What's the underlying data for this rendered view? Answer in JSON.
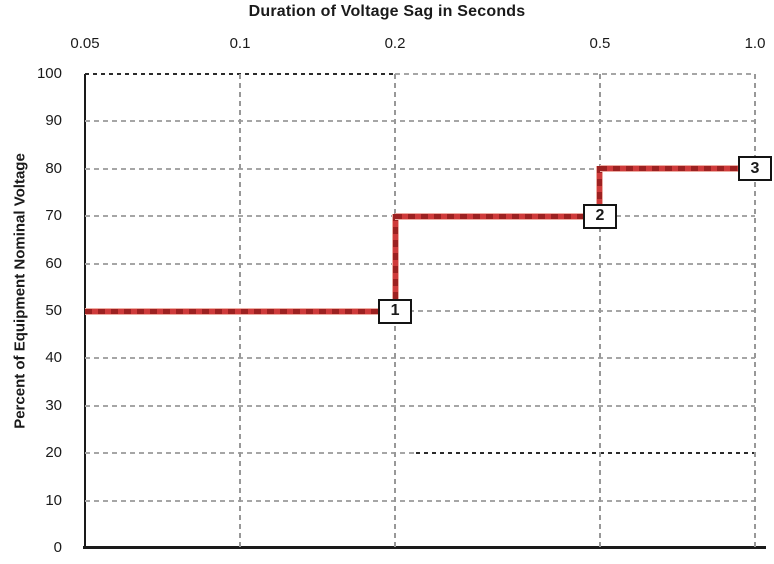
{
  "chart_data": {
    "type": "line",
    "line_shape": "step",
    "title": "Duration of Voltage Sag in Seconds",
    "ylabel": "Percent of Equipment Nominal Voltage",
    "x_axis": {
      "position": "top",
      "scale": "log",
      "lim": [
        0.05,
        1.0
      ],
      "tick_values": [
        0.05,
        0.1,
        0.2,
        0.5,
        1.0
      ],
      "tick_labels": [
        "0.05",
        "0.1",
        "0.2",
        "0.5",
        "1.0"
      ]
    },
    "y_axis": {
      "position": "left",
      "scale": "linear",
      "lim": [
        0,
        100
      ],
      "tick_values": [
        100,
        90,
        80,
        70,
        60,
        50,
        40,
        30,
        20,
        10,
        0
      ],
      "tick_labels": [
        "100",
        "90",
        "80",
        "70",
        "60",
        "50",
        "40",
        "30",
        "20",
        "10",
        "0"
      ]
    },
    "grid": {
      "style": "dashed",
      "gray_color": "#a6a6a6",
      "dark_color": "#2b2b2b",
      "special": [
        {
          "y": 100,
          "left": "dark",
          "right": "gray",
          "split_x": 0.2
        },
        {
          "y": 20,
          "left": "gray",
          "right": "dark",
          "split_x": 0.22
        }
      ]
    },
    "series": [
      {
        "name": "voltage-sag-ride-through-curve",
        "color": "#cf3b3b",
        "points": [
          {
            "x": 0.05,
            "y": 50
          },
          {
            "x": 0.2,
            "y": 50
          },
          {
            "x": 0.2,
            "y": 70
          },
          {
            "x": 0.5,
            "y": 70
          },
          {
            "x": 0.5,
            "y": 80
          },
          {
            "x": 1.0,
            "y": 80
          }
        ]
      }
    ],
    "annotations": [
      {
        "label": "1",
        "x": 0.2,
        "y": 50
      },
      {
        "label": "2",
        "x": 0.5,
        "y": 70
      },
      {
        "label": "3",
        "x": 1.0,
        "y": 80
      }
    ],
    "colors": {
      "line": "#cf3b3b",
      "line_dash": "#9c2121",
      "line_halo": "#edaca3",
      "axis": "#1a1a1a",
      "background": "#ffffff",
      "annotation_bg": "#ffffff",
      "annotation_border": "#141414"
    }
  }
}
